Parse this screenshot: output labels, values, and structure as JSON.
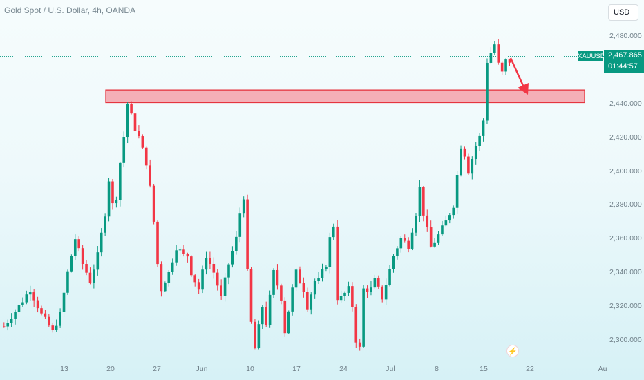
{
  "header": {
    "title": "Gold Spot / U.S. Dollar, 4h, OANDA"
  },
  "currency_button": {
    "label": "USD"
  },
  "price_tag": {
    "symbol": "XAUUSD",
    "price": "2,467.865",
    "countdown": "01:44:57"
  },
  "colors": {
    "up": "#089981",
    "down": "#f23645",
    "zone_fill": "#f4a1aa",
    "zone_border": "#e5343f",
    "arrow": "#f23645",
    "price_line": "#089981"
  },
  "icons": {
    "flash": "lightning-icon"
  },
  "chart_data": {
    "type": "candlestick",
    "title": "Gold Spot / U.S. Dollar, 4h, OANDA",
    "y_axis": {
      "ticks": [
        "2,300.000",
        "2,320.000",
        "2,340.000",
        "2,360.000",
        "2,380.000",
        "2,400.000",
        "2,420.000",
        "2,440.000",
        "2,460.000",
        "2,480.000"
      ],
      "tick_values": [
        2300,
        2320,
        2340,
        2360,
        2380,
        2400,
        2420,
        2440,
        2460,
        2480
      ],
      "range": [
        2286,
        2486
      ]
    },
    "x_axis": {
      "ticks": [
        "13",
        "20",
        "27",
        "Jun",
        "10",
        "17",
        "24",
        "Jul",
        "8",
        "15",
        "22",
        "Au"
      ]
    },
    "current_price": 2467.865,
    "resistance_zone": {
      "low": 2440.5,
      "high": 2448.0
    },
    "path_points": [
      [
        2308,
        0
      ],
      [
        2320,
        4
      ],
      [
        2330,
        7
      ],
      [
        2315,
        10
      ],
      [
        2305,
        13
      ],
      [
        2315,
        15
      ],
      [
        2340,
        17
      ],
      [
        2360,
        19
      ],
      [
        2345,
        21
      ],
      [
        2335,
        23
      ],
      [
        2350,
        25
      ],
      [
        2375,
        27
      ],
      [
        2395,
        28
      ],
      [
        2380,
        29
      ],
      [
        2385,
        30
      ],
      [
        2405,
        31
      ],
      [
        2420,
        32
      ],
      [
        2440,
        33
      ],
      [
        2425,
        35
      ],
      [
        2420,
        36
      ],
      [
        2405,
        38
      ],
      [
        2390,
        39
      ],
      [
        2370,
        40
      ],
      [
        2345,
        41
      ],
      [
        2330,
        42
      ],
      [
        2340,
        44
      ],
      [
        2355,
        46
      ],
      [
        2350,
        48
      ],
      [
        2350,
        49
      ],
      [
        2340,
        50
      ],
      [
        2330,
        52
      ],
      [
        2350,
        54
      ],
      [
        2340,
        56
      ],
      [
        2325,
        58
      ],
      [
        2345,
        60
      ],
      [
        2360,
        62
      ],
      [
        2375,
        63
      ],
      [
        2385,
        64
      ],
      [
        2340,
        65
      ],
      [
        2310,
        66
      ],
      [
        2295,
        67
      ],
      [
        2320,
        69
      ],
      [
        2310,
        70
      ],
      [
        2340,
        72
      ],
      [
        2325,
        74
      ],
      [
        2305,
        75
      ],
      [
        2330,
        77
      ],
      [
        2340,
        78
      ],
      [
        2330,
        80
      ],
      [
        2320,
        81
      ],
      [
        2335,
        83
      ],
      [
        2335,
        84
      ],
      [
        2345,
        86
      ],
      [
        2360,
        87
      ],
      [
        2368,
        88
      ],
      [
        2325,
        89
      ],
      [
        2325,
        90
      ],
      [
        2330,
        92
      ],
      [
        2320,
        93
      ],
      [
        2300,
        94
      ],
      [
        2295,
        95
      ],
      [
        2330,
        96
      ],
      [
        2330,
        98
      ],
      [
        2335,
        99
      ],
      [
        2325,
        101
      ],
      [
        2333,
        102
      ],
      [
        2350,
        104
      ],
      [
        2360,
        106
      ],
      [
        2356,
        108
      ],
      [
        2375,
        110
      ],
      [
        2390,
        111
      ],
      [
        2375,
        112
      ],
      [
        2355,
        114
      ],
      [
        2362,
        116
      ],
      [
        2370,
        118
      ],
      [
        2380,
        120
      ],
      [
        2415,
        122
      ],
      [
        2410,
        123
      ],
      [
        2400,
        124
      ],
      [
        2415,
        126
      ],
      [
        2420,
        127
      ],
      [
        2430,
        128
      ],
      [
        2465,
        129
      ],
      [
        2475,
        131
      ],
      [
        2463,
        132
      ],
      [
        2458,
        133
      ],
      [
        2465,
        134
      ]
    ]
  }
}
